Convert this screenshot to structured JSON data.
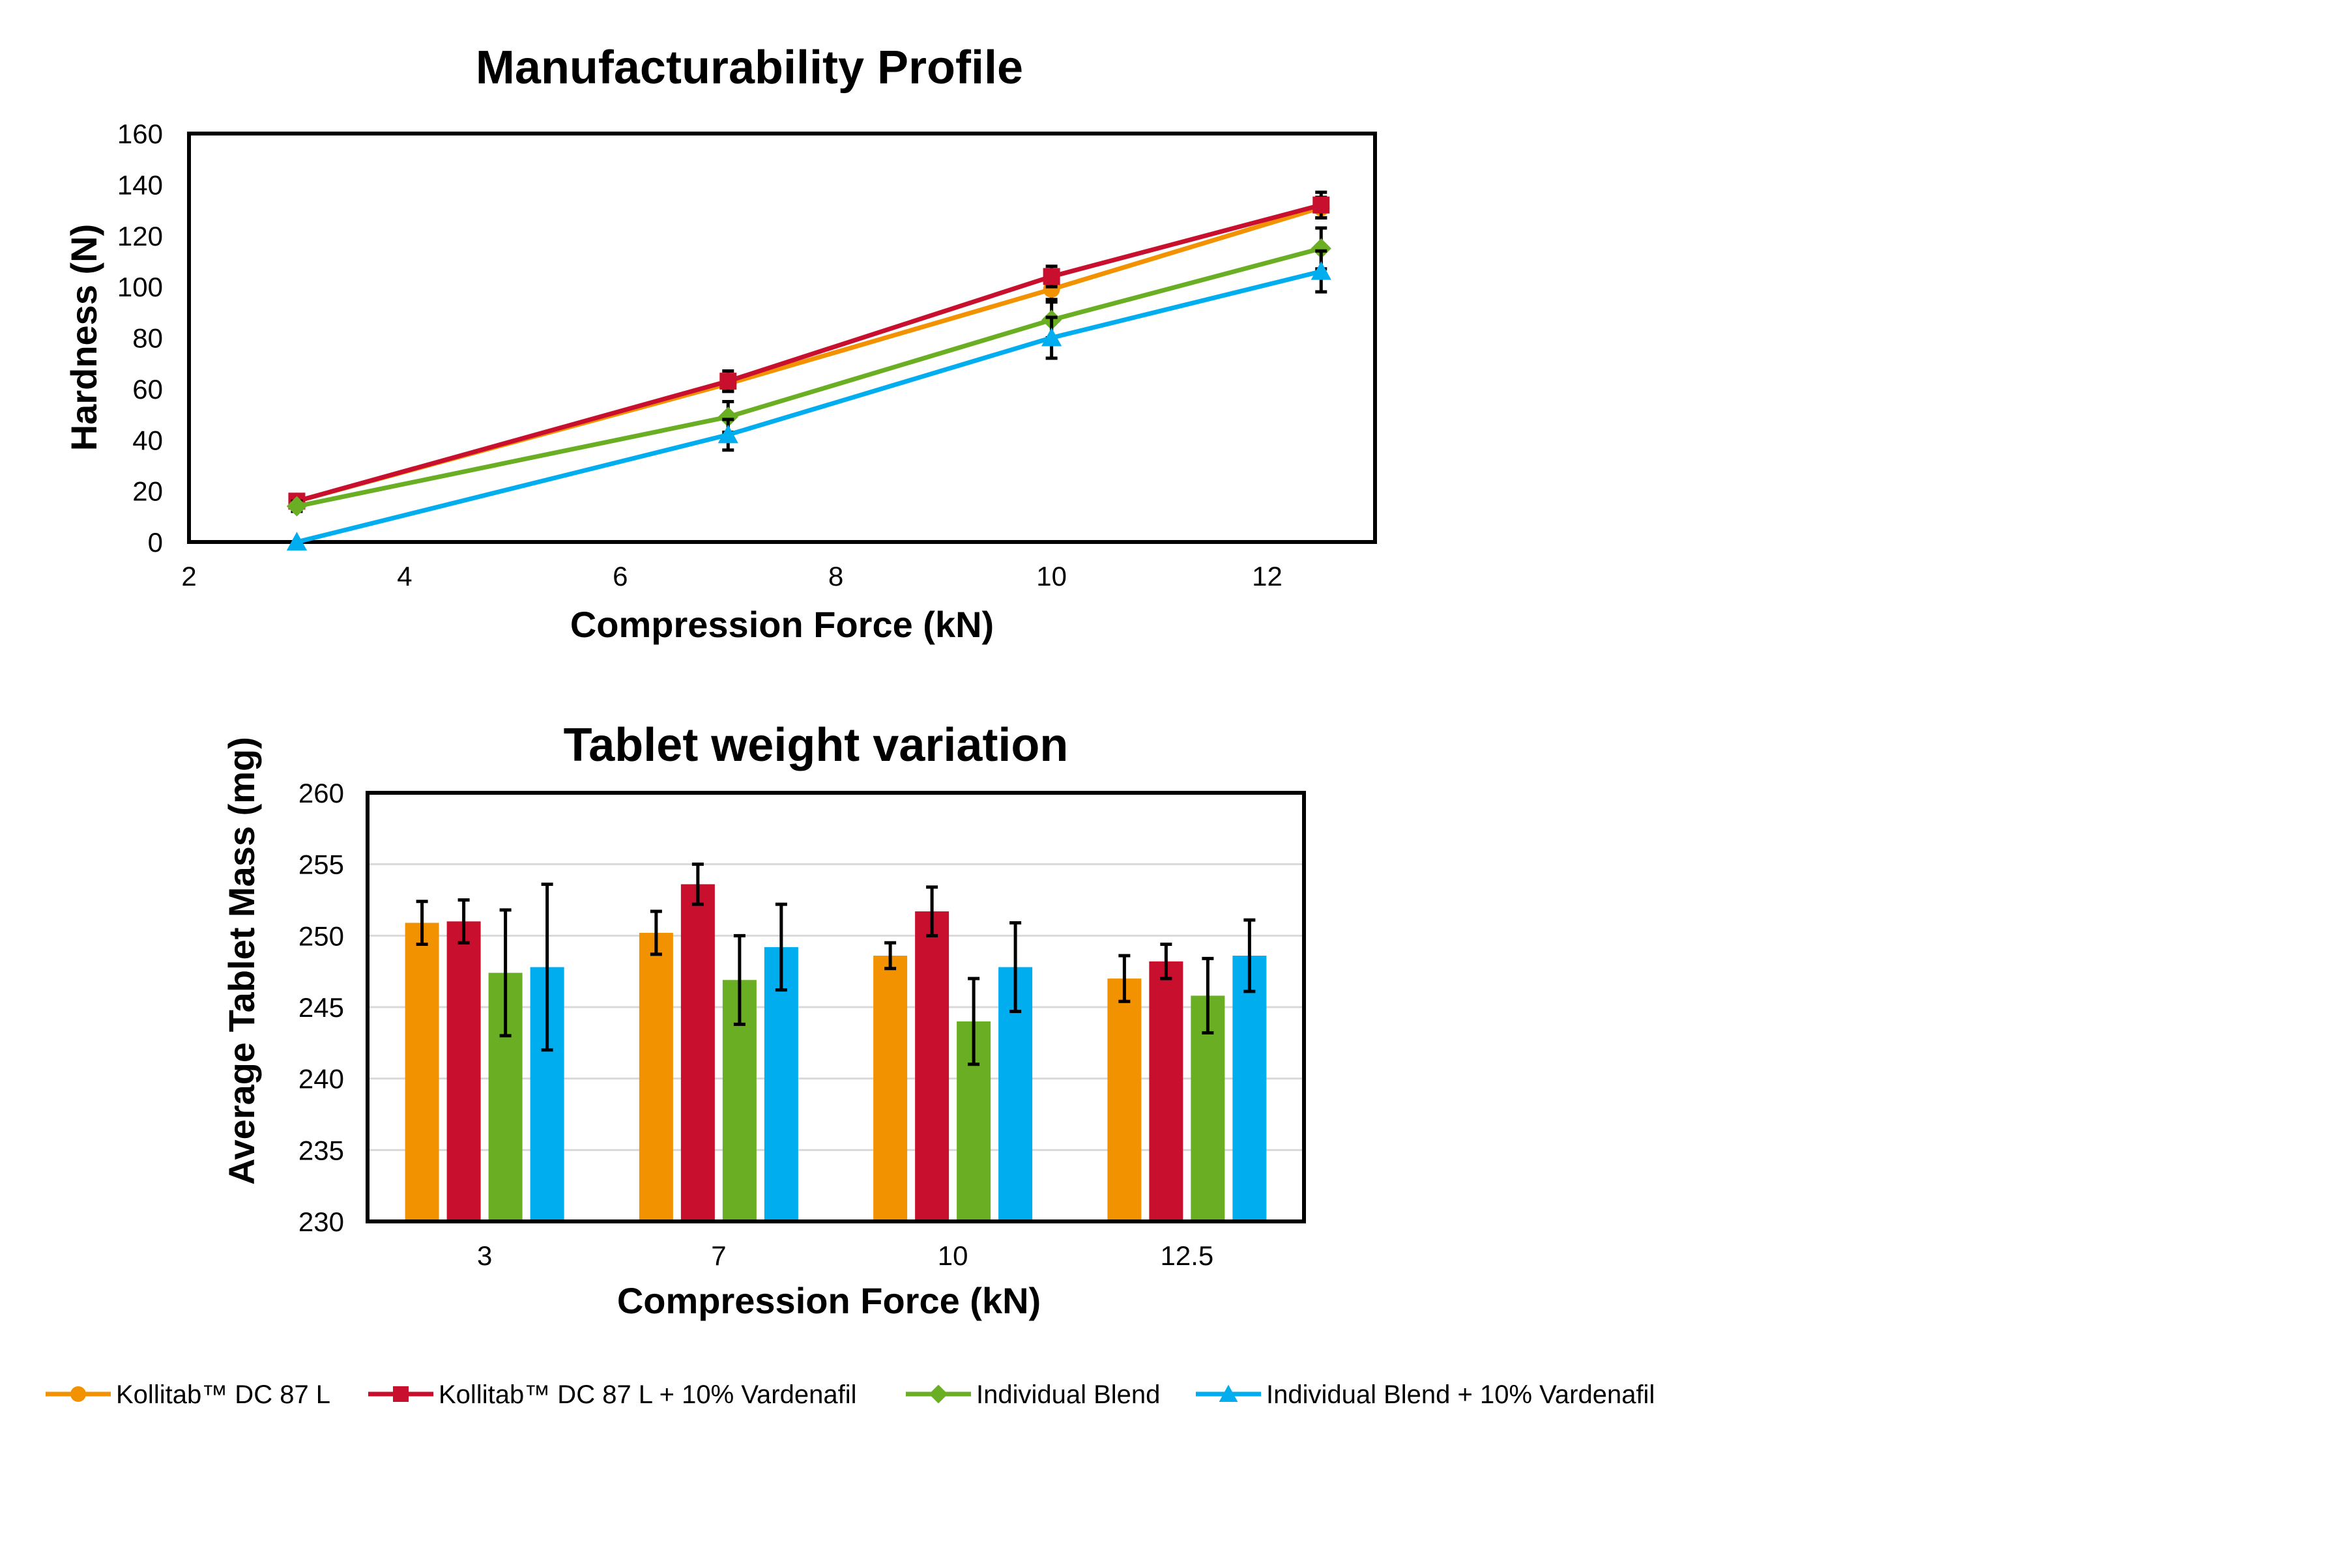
{
  "series_meta": [
    {
      "name": "Kollitab™ DC 87 L",
      "color": "#F39200",
      "marker": "circle"
    },
    {
      "name": "Kollitab™ DC 87 L + 10% Vardenafil",
      "color": "#C8102E",
      "marker": "square"
    },
    {
      "name": "Individual Blend",
      "color": "#6AAE23",
      "marker": "diamond"
    },
    {
      "name": "Individual Blend + 10% Vardenafil",
      "color": "#00AEEF",
      "marker": "triangle"
    }
  ],
  "chart_data": [
    {
      "type": "line",
      "title": "Manufacturability Profile",
      "xlabel": "Compression Force (kN)",
      "ylabel": "Hardness (N)",
      "xlim": [
        2,
        13
      ],
      "ylim": [
        0,
        160
      ],
      "xticks": [
        "2",
        "4",
        "6",
        "8",
        "10",
        "12"
      ],
      "yticks": [
        "0",
        "20",
        "40",
        "60",
        "80",
        "100",
        "120",
        "140",
        "160"
      ],
      "grid": false,
      "legend": "bottom",
      "x": [
        3,
        7,
        10,
        12.5
      ],
      "series": [
        {
          "name": "Kollitab™ DC 87 L",
          "values": [
            16,
            62,
            99,
            131
          ],
          "errors": [
            2,
            3,
            4,
            4
          ]
        },
        {
          "name": "Kollitab™ DC 87 L + 10% Vardenafil",
          "values": [
            16,
            63,
            104,
            132
          ],
          "errors": [
            2,
            4,
            4,
            5
          ]
        },
        {
          "name": "Individual Blend",
          "values": [
            14,
            49,
            87,
            115
          ],
          "errors": [
            2,
            6,
            7,
            8
          ]
        },
        {
          "name": "Individual Blend + 10% Vardenafil",
          "values": [
            0,
            42,
            80,
            106
          ],
          "errors": [
            0,
            6,
            8,
            8
          ]
        }
      ]
    },
    {
      "type": "bar",
      "title": "Tablet weight variation",
      "xlabel": "Compression Force (kN)",
      "ylabel": "Average Tablet Mass (mg)",
      "categories": [
        "3",
        "7",
        "10",
        "12.5"
      ],
      "ylim": [
        230,
        260
      ],
      "yticks": [
        "230",
        "235",
        "240",
        "245",
        "250",
        "255",
        "260"
      ],
      "grid": true,
      "legend": "bottom",
      "series": [
        {
          "name": "Kollitab™ DC 87 L",
          "values": [
            250.9,
            250.2,
            248.6,
            247.0
          ],
          "errors": [
            1.5,
            1.5,
            0.9,
            1.6
          ]
        },
        {
          "name": "Kollitab™ DC 87 L + 10% Vardenafil",
          "values": [
            251.0,
            253.6,
            251.7,
            248.2
          ],
          "errors": [
            1.5,
            1.4,
            1.7,
            1.2
          ]
        },
        {
          "name": "Individual Blend",
          "values": [
            247.4,
            246.9,
            244.0,
            245.8
          ],
          "errors": [
            4.4,
            3.1,
            3.0,
            2.6
          ]
        },
        {
          "name": "Individual Blend + 10% Vardenafil",
          "values": [
            247.8,
            249.2,
            247.8,
            248.6
          ],
          "errors": [
            5.8,
            3.0,
            3.1,
            2.5
          ]
        }
      ]
    }
  ]
}
